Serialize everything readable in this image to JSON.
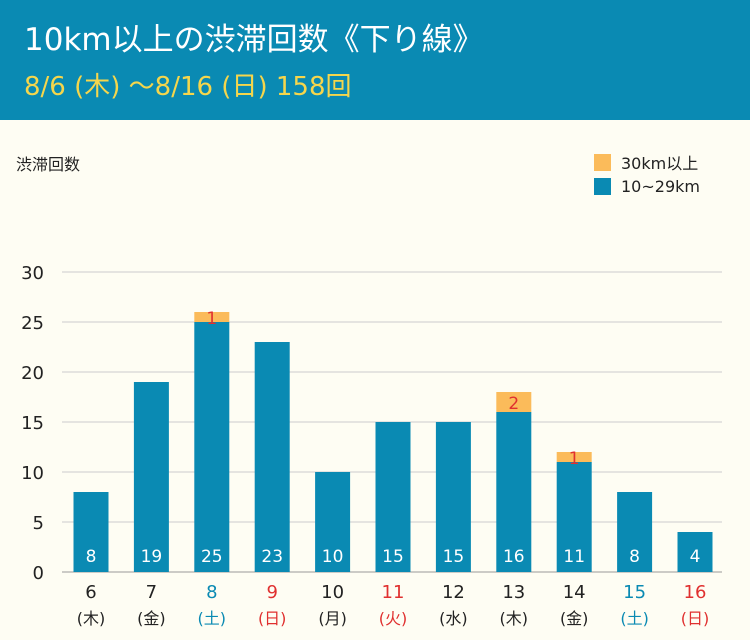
{
  "title": "10km以上の渋滞回数《下り線》",
  "subtitle": "8/6 (木) ～8/16 (日) 158回",
  "colors": {
    "header_bg": "#0a8ab3",
    "title": "#ffffff",
    "subtitle": "#f5d64c",
    "series_10_29": "#0a8ab3",
    "series_30plus": "#fbbb5a",
    "saturday": "#0a8ab3",
    "holiday": "#e0302f",
    "weekday": "#222222",
    "grid": "#cccccc"
  },
  "chart_data": {
    "type": "bar",
    "stacked": true,
    "ylabel": "渋滞回数",
    "ylim": [
      0,
      30
    ],
    "yticks": [
      0,
      5,
      10,
      15,
      20,
      25,
      30
    ],
    "grid": true,
    "legend_position": "top-right",
    "categories": [
      {
        "day": "6",
        "weekday": "(木)",
        "type": "weekday"
      },
      {
        "day": "7",
        "weekday": "(金)",
        "type": "weekday"
      },
      {
        "day": "8",
        "weekday": "(土)",
        "type": "saturday"
      },
      {
        "day": "9",
        "weekday": "(日)",
        "type": "holiday"
      },
      {
        "day": "10",
        "weekday": "(月)",
        "type": "weekday"
      },
      {
        "day": "11",
        "weekday": "(火)",
        "type": "holiday"
      },
      {
        "day": "12",
        "weekday": "(水)",
        "type": "weekday"
      },
      {
        "day": "13",
        "weekday": "(木)",
        "type": "weekday"
      },
      {
        "day": "14",
        "weekday": "(金)",
        "type": "weekday"
      },
      {
        "day": "15",
        "weekday": "(土)",
        "type": "saturday"
      },
      {
        "day": "16",
        "weekday": "(日)",
        "type": "holiday"
      }
    ],
    "series": [
      {
        "name": "10~29km",
        "color": "#0a8ab3",
        "values": [
          8,
          19,
          25,
          23,
          10,
          15,
          15,
          16,
          11,
          8,
          4
        ]
      },
      {
        "name": "30km以上",
        "color": "#fbbb5a",
        "values": [
          0,
          0,
          1,
          0,
          0,
          0,
          0,
          2,
          1,
          0,
          0
        ]
      }
    ],
    "legend_order": [
      "30km以上",
      "10~29km"
    ]
  }
}
